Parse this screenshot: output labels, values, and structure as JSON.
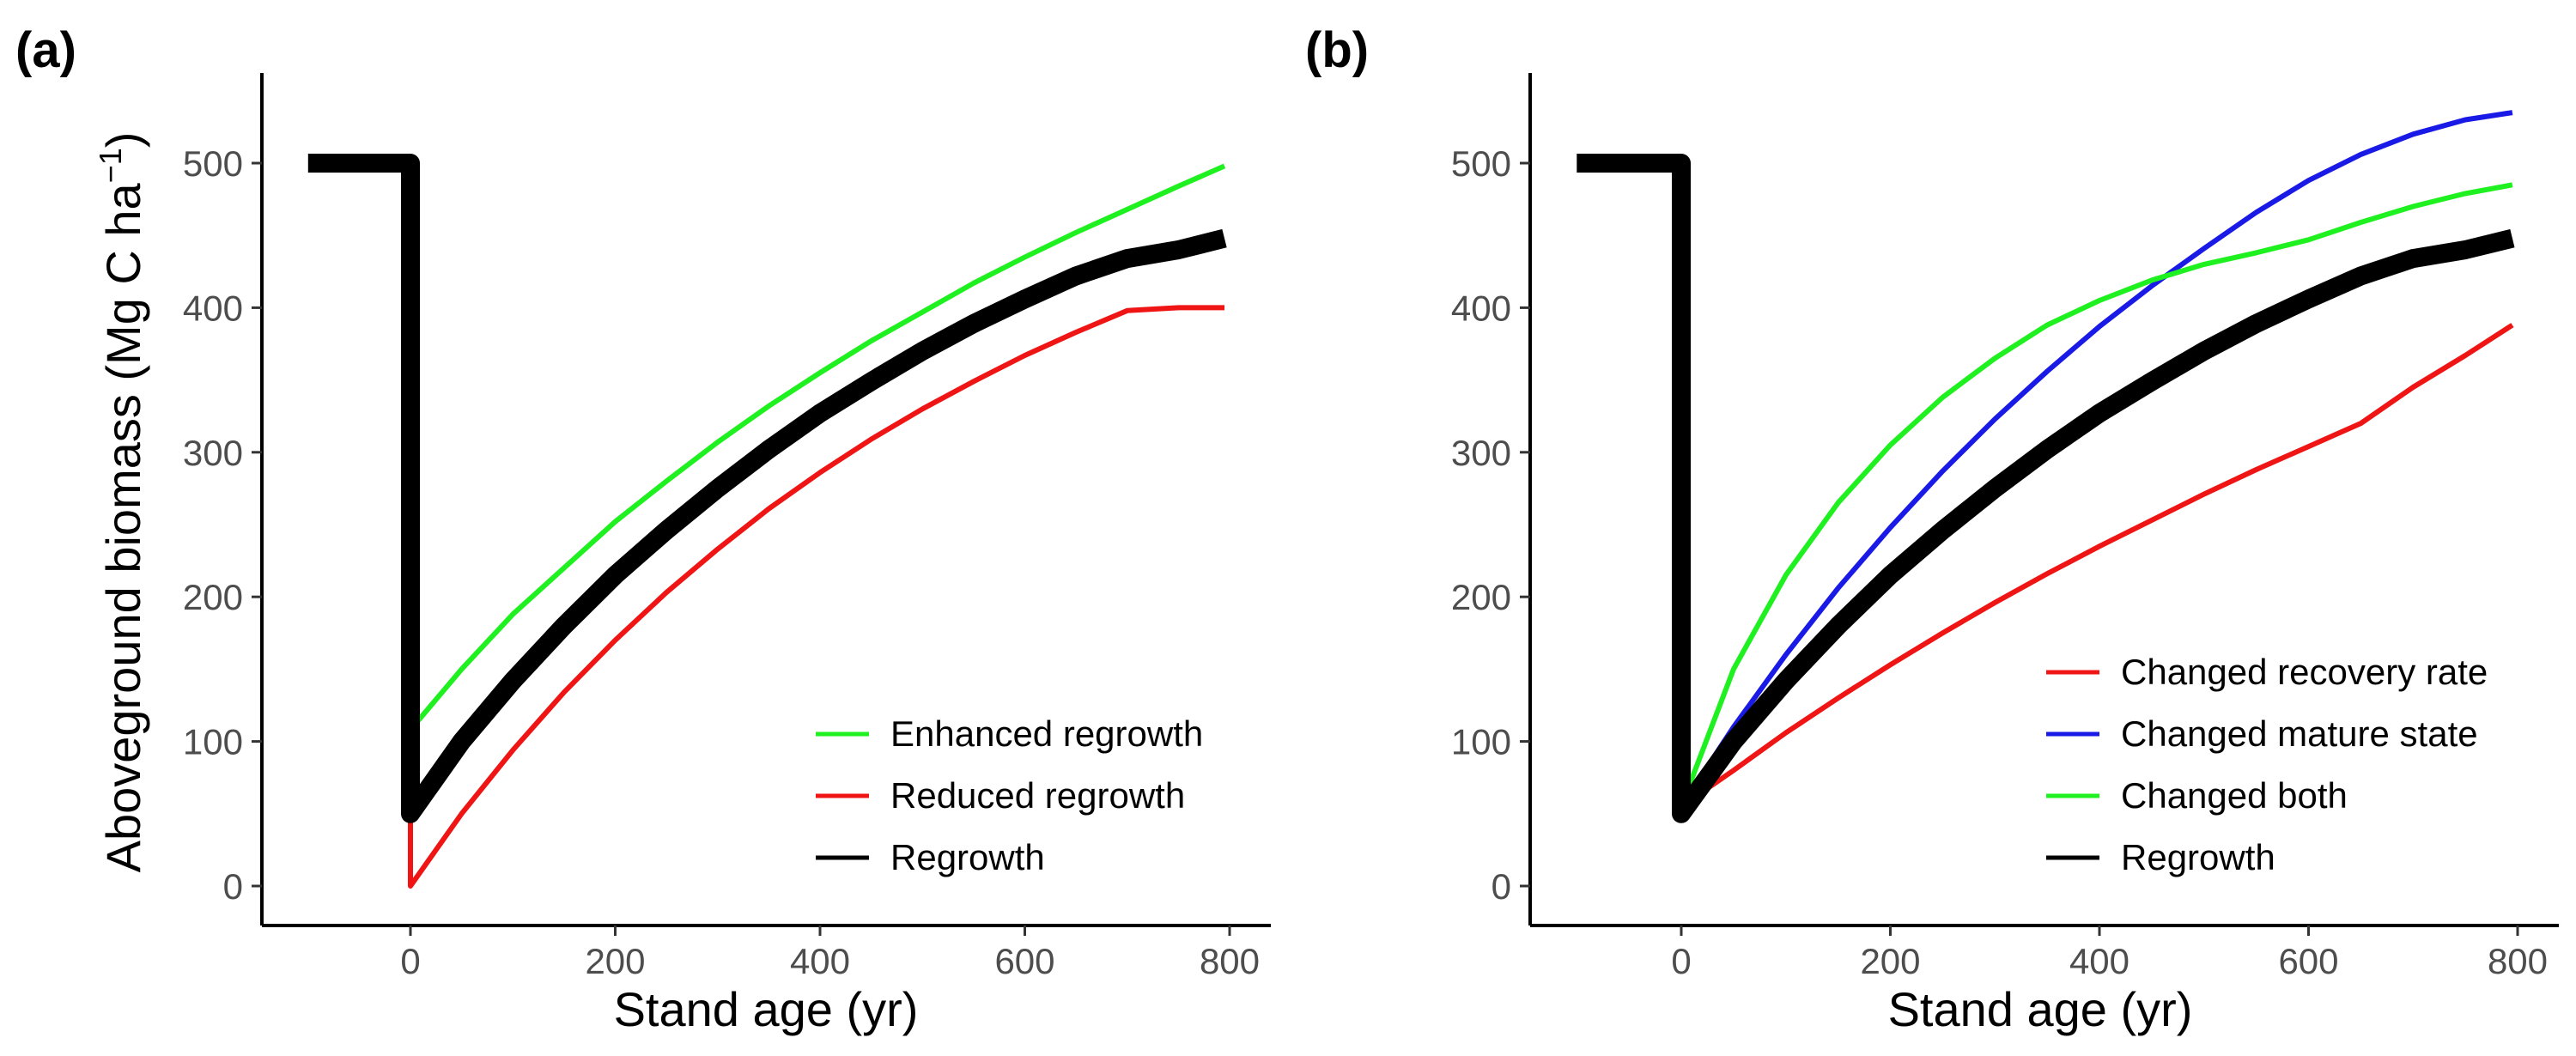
{
  "ylabel_main": "Aboveground biomass (Mg C ha",
  "ylabel_sup": "−1",
  "ylabel_close": ")",
  "colors": {
    "green": "#1ff01f",
    "red": "#f01515",
    "blue": "#1a1ae6",
    "black": "#000000"
  },
  "chart_data": [
    {
      "panel": "(a)",
      "type": "line",
      "xlabel": "Stand age (yr)",
      "ylabel": "Aboveground biomass (Mg C ha−1)",
      "xlim": [
        -110,
        830
      ],
      "ylim": [
        -25,
        560
      ],
      "xticks": [
        0,
        200,
        400,
        600,
        800
      ],
      "yticks": [
        0,
        100,
        200,
        300,
        400,
        500
      ],
      "legend_position": "bottom-right",
      "series": [
        {
          "name": "Enhanced regrowth",
          "color": "#1ff01f",
          "width": "thin",
          "x": [
            0,
            50,
            100,
            150,
            200,
            250,
            300,
            350,
            400,
            450,
            500,
            550,
            600,
            650,
            700,
            750,
            795
          ],
          "y": [
            108,
            150,
            188,
            220,
            252,
            280,
            307,
            332,
            355,
            377,
            397,
            417,
            435,
            452,
            468,
            484,
            498
          ]
        },
        {
          "name": "Reduced regrowth",
          "color": "#f01515",
          "width": "thin",
          "x": [
            0,
            0,
            50,
            100,
            150,
            200,
            250,
            300,
            350,
            400,
            450,
            500,
            550,
            600,
            650,
            700,
            750,
            795
          ],
          "y": [
            50,
            0,
            50,
            94,
            134,
            170,
            203,
            233,
            261,
            286,
            309,
            330,
            349,
            367,
            383,
            398,
            400,
            400
          ]
        },
        {
          "name": "Regrowth",
          "color": "#000000",
          "width": "thick",
          "x": [
            -100,
            0,
            0,
            50,
            100,
            150,
            200,
            250,
            300,
            350,
            400,
            450,
            500,
            550,
            600,
            650,
            700,
            750,
            795
          ],
          "y": [
            500,
            500,
            50,
            100,
            142,
            180,
            215,
            246,
            275,
            302,
            327,
            349,
            370,
            389,
            406,
            422,
            434,
            440,
            448
          ]
        }
      ]
    },
    {
      "panel": "(b)",
      "type": "line",
      "xlabel": "Stand age (yr)",
      "ylabel": "",
      "xlim": [
        -110,
        830
      ],
      "ylim": [
        -25,
        560
      ],
      "xticks": [
        0,
        200,
        400,
        600,
        800
      ],
      "yticks": [
        0,
        100,
        200,
        300,
        400,
        500
      ],
      "legend_position": "bottom-right",
      "series": [
        {
          "name": "Changed recovery rate",
          "color": "#f01515",
          "width": "thin",
          "x": [
            0,
            50,
            100,
            150,
            200,
            250,
            300,
            350,
            400,
            450,
            500,
            550,
            600,
            650,
            700,
            750,
            795
          ],
          "y": [
            55,
            80,
            106,
            130,
            153,
            175,
            196,
            216,
            235,
            253,
            271,
            288,
            304,
            320,
            345,
            367,
            388
          ]
        },
        {
          "name": "Changed mature state",
          "color": "#1a1ae6",
          "width": "thin",
          "x": [
            0,
            50,
            100,
            150,
            200,
            250,
            300,
            350,
            400,
            450,
            500,
            550,
            600,
            650,
            700,
            750,
            795
          ],
          "y": [
            55,
            110,
            160,
            206,
            248,
            287,
            323,
            356,
            387,
            415,
            441,
            466,
            488,
            506,
            520,
            530,
            535
          ]
        },
        {
          "name": "Changed both",
          "color": "#1ff01f",
          "width": "thin",
          "x": [
            0,
            50,
            100,
            150,
            200,
            250,
            300,
            350,
            400,
            450,
            500,
            550,
            600,
            650,
            700,
            750,
            795
          ],
          "y": [
            55,
            150,
            215,
            265,
            305,
            338,
            365,
            388,
            405,
            419,
            430,
            438,
            447,
            459,
            470,
            479,
            485
          ]
        },
        {
          "name": "Regrowth",
          "color": "#000000",
          "width": "thick",
          "x": [
            -100,
            0,
            0,
            50,
            100,
            150,
            200,
            250,
            300,
            350,
            400,
            450,
            500,
            550,
            600,
            650,
            700,
            750,
            795
          ],
          "y": [
            500,
            500,
            50,
            100,
            142,
            180,
            215,
            246,
            275,
            302,
            327,
            349,
            370,
            389,
            406,
            422,
            434,
            440,
            448
          ]
        }
      ]
    }
  ]
}
